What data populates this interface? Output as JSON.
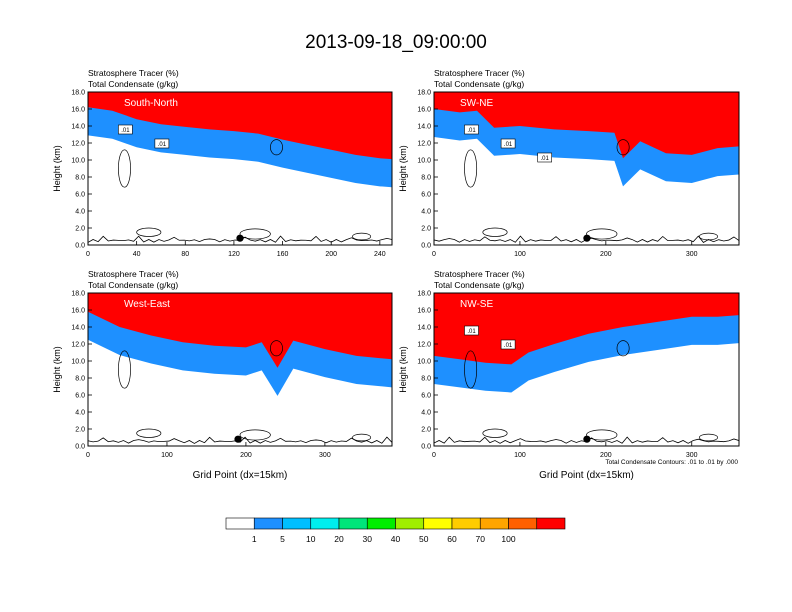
{
  "title": "2013-09-18_09:00:00",
  "footnote": "Total Condensate Contours: .01 to .01 by .000",
  "chart_data": [
    {
      "type": "heatmap",
      "label": "South-North",
      "field_labels": [
        "Stratosphere Tracer   (%)",
        "Total Condensate   (g/kg)"
      ],
      "ylabel": "Height (km)",
      "xlabel": "",
      "xlim": [
        0,
        250
      ],
      "ylim": [
        0,
        18
      ],
      "xticks": [
        0,
        40,
        80,
        120,
        160,
        200,
        240
      ],
      "yticks": [
        "0.0",
        "2.0",
        "4.0",
        "6.0",
        "8.0",
        "10.0",
        "12.0",
        "14.0",
        "16.0",
        "18.0"
      ],
      "contour_labels": [
        ".01",
        ".01"
      ],
      "tropopause_km": [
        [
          0,
          15.6
        ],
        [
          20,
          15.2
        ],
        [
          40,
          14.2
        ],
        [
          60,
          13.6
        ],
        [
          80,
          13.3
        ],
        [
          100,
          13.0
        ],
        [
          120,
          12.8
        ],
        [
          140,
          12.5
        ],
        [
          160,
          11.8
        ],
        [
          180,
          11.2
        ],
        [
          200,
          10.6
        ],
        [
          220,
          10.0
        ],
        [
          240,
          9.6
        ],
        [
          250,
          9.5
        ]
      ],
      "marker_x": 125
    },
    {
      "type": "heatmap",
      "label": "SW-NE",
      "field_labels": [
        "Stratosphere Tracer   (%)",
        "Total Condensate   (g/kg)"
      ],
      "ylabel": "Height (km)",
      "xlabel": "",
      "xlim": [
        0,
        355
      ],
      "ylim": [
        0,
        18
      ],
      "xticks": [
        0,
        100,
        200,
        300
      ],
      "yticks": [
        "0.0",
        "2.0",
        "4.0",
        "6.0",
        "8.0",
        "10.0",
        "12.0",
        "14.0",
        "16.0",
        "18.0"
      ],
      "contour_labels": [
        ".01",
        ".01",
        ".01"
      ],
      "tropopause_km": [
        [
          0,
          15.4
        ],
        [
          30,
          15.0
        ],
        [
          50,
          15.2
        ],
        [
          70,
          13.2
        ],
        [
          100,
          13.4
        ],
        [
          140,
          13.0
        ],
        [
          180,
          12.8
        ],
        [
          210,
          12.6
        ],
        [
          220,
          9.6
        ],
        [
          240,
          11.6
        ],
        [
          270,
          10.2
        ],
        [
          300,
          10.0
        ],
        [
          330,
          10.8
        ],
        [
          355,
          11.0
        ]
      ],
      "marker_x": 178
    },
    {
      "type": "heatmap",
      "label": "West-East",
      "field_labels": [
        "Stratosphere Tracer   (%)",
        "Total Condensate   (g/kg)"
      ],
      "ylabel": "Height (km)",
      "xlabel": "Grid Point (dx=15km)",
      "xlim": [
        0,
        385
      ],
      "ylim": [
        0,
        18
      ],
      "xticks": [
        0,
        100,
        200,
        300
      ],
      "yticks": [
        "0.0",
        "2.0",
        "4.0",
        "6.0",
        "8.0",
        "10.0",
        "12.0",
        "14.0",
        "16.0",
        "18.0"
      ],
      "contour_labels": [],
      "tropopause_km": [
        [
          0,
          15.2
        ],
        [
          40,
          13.4
        ],
        [
          80,
          12.4
        ],
        [
          120,
          11.6
        ],
        [
          160,
          11.2
        ],
        [
          200,
          11.0
        ],
        [
          220,
          11.6
        ],
        [
          240,
          8.6
        ],
        [
          260,
          11.8
        ],
        [
          300,
          10.8
        ],
        [
          340,
          10.0
        ],
        [
          385,
          9.6
        ]
      ],
      "marker_x": 190
    },
    {
      "type": "heatmap",
      "label": "NW-SE",
      "field_labels": [
        "Stratosphere Tracer   (%)",
        "Total Condensate   (g/kg)"
      ],
      "ylabel": "Height (km)",
      "xlabel": "Grid Point (dx=15km)",
      "xlim": [
        0,
        355
      ],
      "ylim": [
        0,
        18
      ],
      "xticks": [
        0,
        100,
        200,
        300
      ],
      "yticks": [
        "0.0",
        "2.0",
        "4.0",
        "6.0",
        "8.0",
        "10.0",
        "12.0",
        "14.0",
        "16.0",
        "18.0"
      ],
      "contour_labels": [
        ".01",
        ".01"
      ],
      "tropopause_km": [
        [
          0,
          10.0
        ],
        [
          30,
          9.6
        ],
        [
          60,
          9.2
        ],
        [
          90,
          9.0
        ],
        [
          110,
          10.4
        ],
        [
          140,
          11.4
        ],
        [
          180,
          12.6
        ],
        [
          220,
          13.4
        ],
        [
          260,
          14.0
        ],
        [
          300,
          14.6
        ],
        [
          330,
          14.6
        ],
        [
          355,
          14.8
        ]
      ],
      "marker_x": 178
    }
  ],
  "colorbar": {
    "labels": [
      "1",
      "5",
      "10",
      "20",
      "30",
      "40",
      "50",
      "60",
      "70",
      "100"
    ],
    "colors": [
      "#ffffff",
      "#1e90ff",
      "#00bfff",
      "#00eeee",
      "#00e57a",
      "#00ee00",
      "#a0ee00",
      "#ffff00",
      "#ffcc00",
      "#ffa500",
      "#ff6000",
      "#ff0000"
    ]
  }
}
